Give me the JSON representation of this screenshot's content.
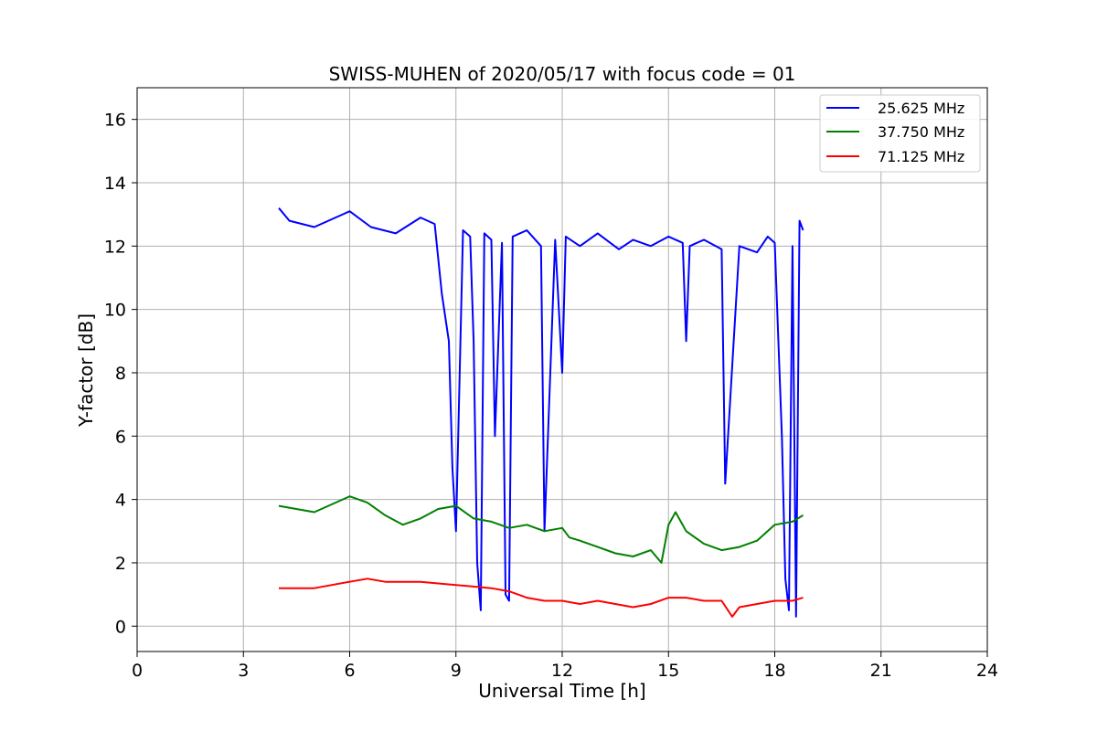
{
  "chart_data": {
    "type": "line",
    "title": "SWISS-MUHEN of 2020/05/17 with focus code = 01",
    "xlabel": "Universal Time [h]",
    "ylabel": "Y-factor [dB]",
    "xlim": [
      0,
      24
    ],
    "ylim": [
      -0.8,
      17
    ],
    "xticks": [
      0,
      3,
      6,
      9,
      12,
      15,
      18,
      21,
      24
    ],
    "yticks": [
      0,
      2,
      4,
      6,
      8,
      10,
      12,
      14,
      16
    ],
    "xtick_labels": [
      "0",
      "3",
      "6",
      "9",
      "12",
      "15",
      "18",
      "21",
      "24"
    ],
    "ytick_labels": [
      "0",
      "2",
      "4",
      "6",
      "8",
      "10",
      "12",
      "14",
      "16"
    ],
    "grid": true,
    "legend_position": "top-right",
    "series": [
      {
        "name": "25.625 MHz",
        "color": "#0000ff",
        "x": [
          4.0,
          4.3,
          5.0,
          6.0,
          6.6,
          7.3,
          8.0,
          8.4,
          8.6,
          8.8,
          8.9,
          9.0,
          9.2,
          9.4,
          9.5,
          9.6,
          9.7,
          9.8,
          10.0,
          10.1,
          10.3,
          10.4,
          10.5,
          10.6,
          11.0,
          11.4,
          11.5,
          11.8,
          12.0,
          12.1,
          12.5,
          13.0,
          13.6,
          14.0,
          14.5,
          15.0,
          15.4,
          15.5,
          15.6,
          16.0,
          16.5,
          16.6,
          17.0,
          17.5,
          17.8,
          18.0,
          18.2,
          18.3,
          18.4,
          18.5,
          18.6,
          18.7,
          18.8
        ],
        "y": [
          13.2,
          12.8,
          12.6,
          13.1,
          12.6,
          12.4,
          12.9,
          12.7,
          10.5,
          9.0,
          5.0,
          3.0,
          12.5,
          12.3,
          9.0,
          2.0,
          0.5,
          12.4,
          12.2,
          6.0,
          12.1,
          1.0,
          0.8,
          12.3,
          12.5,
          12.0,
          3.0,
          12.2,
          8.0,
          12.3,
          12.0,
          12.4,
          11.9,
          12.2,
          12.0,
          12.3,
          12.1,
          9.0,
          12.0,
          12.2,
          11.9,
          4.5,
          12.0,
          11.8,
          12.3,
          12.1,
          6.0,
          1.5,
          0.5,
          12.0,
          0.3,
          12.8,
          12.5
        ]
      },
      {
        "name": "37.750 MHz",
        "color": "#008000",
        "x": [
          4.0,
          5.0,
          6.0,
          6.5,
          7.0,
          7.5,
          8.0,
          8.5,
          9.0,
          9.5,
          10.0,
          10.5,
          11.0,
          11.5,
          12.0,
          12.2,
          12.5,
          13.0,
          13.5,
          14.0,
          14.5,
          14.8,
          15.0,
          15.2,
          15.5,
          16.0,
          16.5,
          17.0,
          17.5,
          18.0,
          18.5,
          18.8
        ],
        "y": [
          3.8,
          3.6,
          4.1,
          3.9,
          3.5,
          3.2,
          3.4,
          3.7,
          3.8,
          3.4,
          3.3,
          3.1,
          3.2,
          3.0,
          3.1,
          2.8,
          2.7,
          2.5,
          2.3,
          2.2,
          2.4,
          2.0,
          3.2,
          3.6,
          3.0,
          2.6,
          2.4,
          2.5,
          2.7,
          3.2,
          3.3,
          3.5
        ]
      },
      {
        "name": "71.125 MHz",
        "color": "#ff0000",
        "x": [
          4.0,
          5.0,
          6.0,
          6.5,
          7.0,
          8.0,
          9.0,
          10.0,
          10.5,
          11.0,
          11.5,
          12.0,
          12.5,
          13.0,
          13.5,
          14.0,
          14.5,
          15.0,
          15.5,
          16.0,
          16.5,
          16.8,
          17.0,
          17.5,
          18.0,
          18.5,
          18.8
        ],
        "y": [
          1.2,
          1.2,
          1.4,
          1.5,
          1.4,
          1.4,
          1.3,
          1.2,
          1.1,
          0.9,
          0.8,
          0.8,
          0.7,
          0.8,
          0.7,
          0.6,
          0.7,
          0.9,
          0.9,
          0.8,
          0.8,
          0.3,
          0.6,
          0.7,
          0.8,
          0.8,
          0.9
        ]
      }
    ]
  }
}
